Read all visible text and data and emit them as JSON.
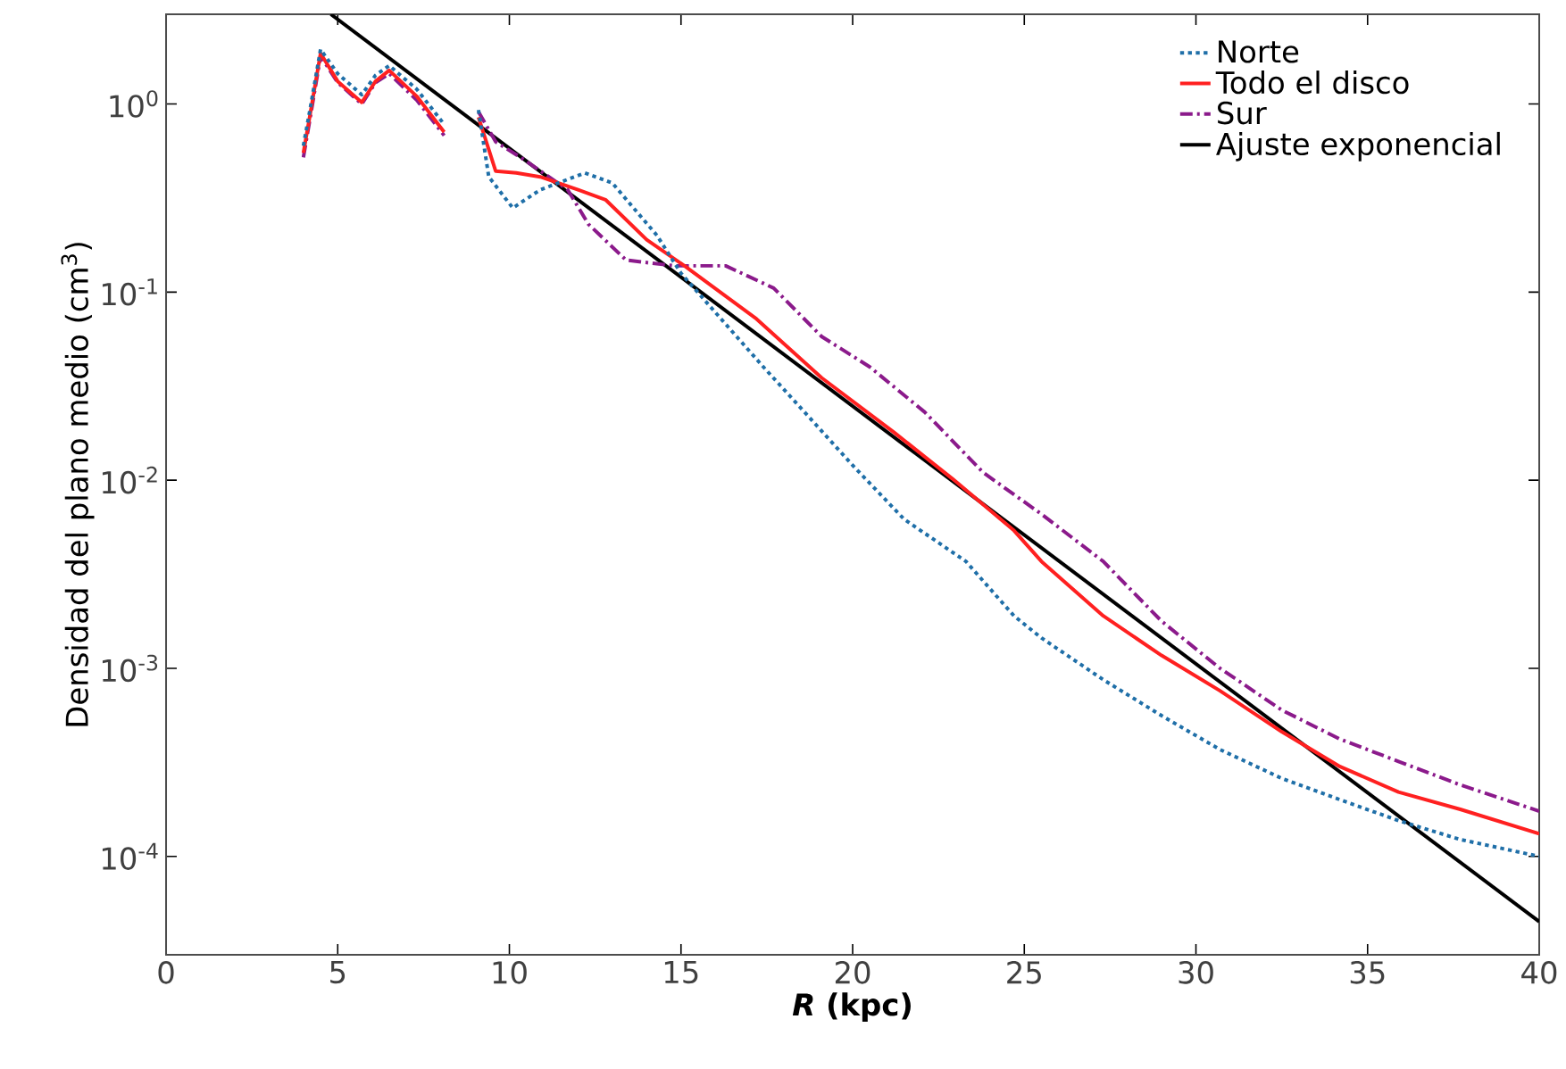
{
  "chart_data": {
    "type": "line",
    "xlabel": "*R* (kpc)",
    "ylabel": "Densidad del plano medio (cm$^{3}$)",
    "xlim": [
      0,
      40
    ],
    "xticks": [
      0,
      5,
      10,
      15,
      20,
      25,
      30,
      35,
      40
    ],
    "ylim": [
      3e-05,
      3
    ],
    "log": "y",
    "yticks": [
      {
        "value": 1,
        "label": "10$^{0}$"
      },
      {
        "value": 0.1,
        "label": "10$^{-1}$"
      },
      {
        "value": 0.01,
        "label": "10$^{-2}$"
      },
      {
        "value": 0.001,
        "label": "10$^{-3}$"
      },
      {
        "value": 0.0001,
        "label": "10$^{-4}$"
      }
    ],
    "legend": "top right",
    "marker": "none",
    "series": [
      {
        "name": "Norte",
        "color": "#1f6fa8",
        "line_style": "dotted",
        "x": [
          4.0,
          4.2,
          4.5,
          5.0,
          5.7,
          6.1,
          6.5,
          7.3,
          8.1,
          8.6,
          9.1,
          9.4,
          10.1,
          10.9,
          12.2,
          13.0,
          14.3,
          15.0,
          16.0,
          17.4,
          18.6,
          20.0,
          21.5,
          23.3,
          24.7,
          25.5,
          27.3,
          29.0,
          30.7,
          32.5,
          34.2,
          35.9,
          37.7,
          40
        ],
        "values": [
          0.6,
          0.95,
          1.95,
          1.45,
          1.12,
          1.42,
          1.6,
          1.2,
          0.78,
          null,
          0.93,
          0.41,
          0.28,
          0.35,
          0.43,
          0.38,
          0.2,
          0.126,
          0.078,
          0.04,
          0.023,
          0.012,
          0.0062,
          0.0037,
          0.0019,
          0.00145,
          0.00087,
          0.00056,
          0.00037,
          0.00026,
          0.0002,
          0.000155,
          0.000123,
          0.0001
        ]
      },
      {
        "name": "Todo el disco",
        "color": "#ff2020",
        "line_style": "solid",
        "x": [
          4.0,
          4.2,
          4.5,
          5.0,
          5.7,
          6.1,
          6.5,
          7.3,
          8.1,
          8.6,
          9.1,
          9.6,
          10.2,
          10.9,
          12.0,
          12.8,
          14.0,
          15.1,
          17.2,
          19.1,
          21.2,
          22.9,
          24.7,
          25.5,
          27.3,
          29.0,
          30.7,
          32.5,
          34.2,
          35.9,
          37.7,
          40
        ],
        "values": [
          0.55,
          0.89,
          1.86,
          1.32,
          1.02,
          1.32,
          1.51,
          1.1,
          0.71,
          null,
          0.85,
          0.44,
          0.43,
          0.41,
          0.35,
          0.31,
          0.19,
          0.138,
          0.072,
          0.035,
          0.018,
          0.0102,
          0.0054,
          0.0037,
          0.0019,
          0.00117,
          0.00076,
          0.00046,
          0.0003,
          0.00022,
          0.000178,
          0.000132
        ]
      },
      {
        "name": "Sur",
        "color": "#8b1a8b",
        "line_style": "dashed",
        "x": [
          4.0,
          4.2,
          4.5,
          5.0,
          5.7,
          6.1,
          6.5,
          7.3,
          8.1,
          8.6,
          9.1,
          9.6,
          10.4,
          11.7,
          12.3,
          13.4,
          14.8,
          16.3,
          17.7,
          19.1,
          20.5,
          22.1,
          23.8,
          25.5,
          27.3,
          29.0,
          30.7,
          32.5,
          34.2,
          35.9,
          37.7,
          40
        ],
        "values": [
          0.52,
          0.85,
          1.8,
          1.3,
          1.0,
          1.3,
          1.45,
          1.05,
          0.68,
          null,
          0.91,
          0.63,
          0.51,
          0.35,
          0.23,
          0.148,
          0.138,
          0.138,
          0.105,
          0.058,
          0.04,
          0.023,
          0.011,
          0.0066,
          0.0037,
          0.00178,
          0.001,
          0.0006,
          0.00042,
          0.00032,
          0.00024,
          0.000174
        ]
      },
      {
        "name": "Ajuste exponencial",
        "color": "#000000",
        "line_style": "solid",
        "x": [
          4.8,
          40
        ],
        "values": [
          3,
          4.5e-05
        ]
      }
    ]
  }
}
